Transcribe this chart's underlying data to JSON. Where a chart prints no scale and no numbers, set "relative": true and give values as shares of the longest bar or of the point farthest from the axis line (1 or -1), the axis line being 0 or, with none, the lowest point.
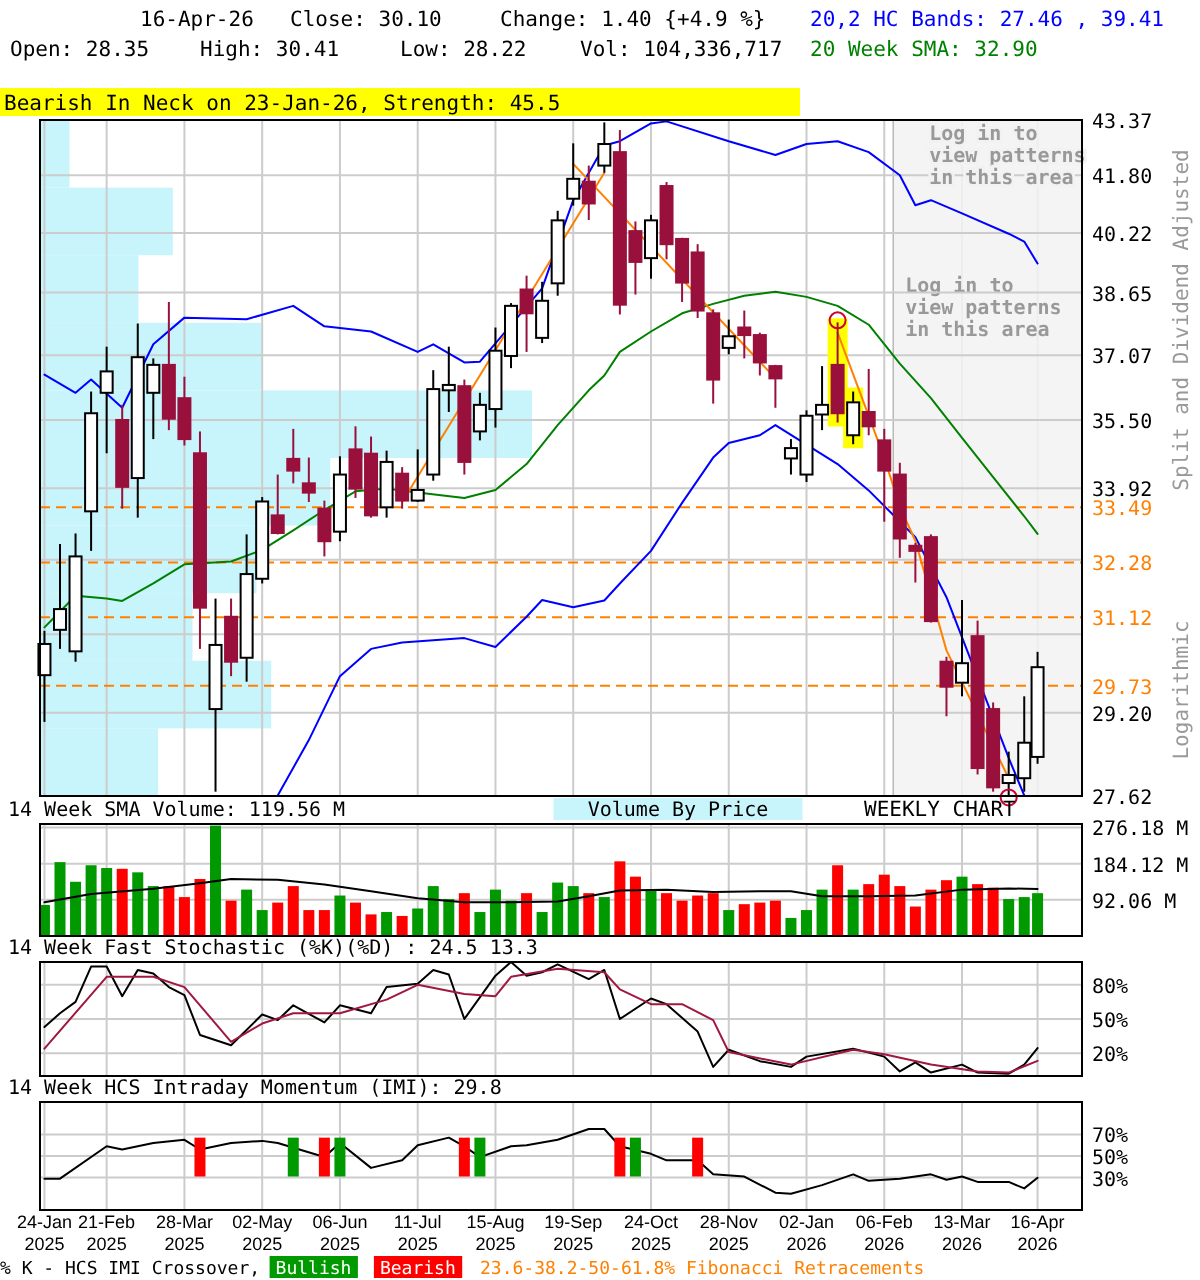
{
  "chart_data": [
    {
      "type": "candlestick",
      "title": "Bearish In Neck on 23-Jan-26, Strength: 45.5",
      "ylabel": "Split and Dividend Adjusted",
      "colors": [
        "#ffffff",
        "#ffffff",
        "#ffffff",
        "#ffffff",
        "#ffffff",
        "#99103c",
        "#ffffff",
        "#ffffff",
        "#99103c",
        "#99103c",
        "#99103c",
        "#ffffff",
        "#99103c",
        "#ffffff",
        "#ffffff",
        "#99103c",
        "#99103c",
        "#99103c",
        "#99103c",
        "#ffffff",
        "#99103c",
        "#99103c",
        "#ffffff",
        "#99103c",
        "#ffffff",
        "#ffffff",
        "#ffffff",
        "#99103c",
        "#ffffff",
        "#ffffff",
        "#ffffff",
        "#99103c",
        "#ffffff",
        "#ffffff",
        "#ffffff",
        "#99103c",
        "#ffffff",
        "#99103c",
        "#99103c",
        "#ffffff",
        "#99103c",
        "#99103c",
        "#99103c",
        "#99103c",
        "#ffffff",
        "#99103c",
        "#99103c",
        "#99103c",
        "#ffffff",
        "#ffffff",
        "#ffffff",
        "#99103c",
        "#ffffff",
        "#99103c",
        "#99103c",
        "#99103c",
        "#99103c",
        "#99103c",
        "#99103c",
        "#ffffff",
        "#99103c",
        "#99103c",
        "#ffffff",
        "#ffffff",
        "#ffffff"
      ],
      "annotations": [
        "16-Apr-26",
        "Close: 30.10",
        "Change: 1.40 {+4.9 %}",
        "Open: 28.35",
        "High: 30.41",
        "Low: 28.22",
        "Vol: 104,336,717",
        "20,2 HC Bands: 27.46 , 39.41",
        "20 Week SMA: 32.90",
        "Logarithmic",
        "Log in to view patterns in this area"
      ],
      "x": [
        "2025-01-24",
        "2025-01-31",
        "2025-02-07",
        "2025-02-14",
        "2025-02-21",
        "2025-02-28",
        "2025-03-07",
        "2025-03-14",
        "2025-03-21",
        "2025-03-28",
        "2025-04-04",
        "2025-04-11",
        "2025-04-18",
        "2025-04-25",
        "2025-05-02",
        "2025-05-09",
        "2025-05-16",
        "2025-05-23",
        "2025-05-30",
        "2025-06-06",
        "2025-06-13",
        "2025-06-20",
        "2025-06-27",
        "2025-07-04",
        "2025-07-11",
        "2025-07-18",
        "2025-07-25",
        "2025-08-01",
        "2025-08-08",
        "2025-08-15",
        "2025-08-22",
        "2025-08-29",
        "2025-09-05",
        "2025-09-12",
        "2025-09-19",
        "2025-09-26",
        "2025-10-03",
        "2025-10-10",
        "2025-10-17",
        "2025-10-24",
        "2025-10-31",
        "2025-11-07",
        "2025-11-14",
        "2025-11-21",
        "2025-11-28",
        "2025-12-05",
        "2025-12-12",
        "2025-12-19",
        "2025-12-26",
        "2026-01-02",
        "2026-01-09",
        "2026-01-16",
        "2026-01-23",
        "2026-01-30",
        "2026-02-06",
        "2026-02-13",
        "2026-02-20",
        "2026-02-27",
        "2026-03-06",
        "2026-03-13",
        "2026-03-20",
        "2026-03-27",
        "2026-04-03",
        "2026-04-10",
        "2026-04-16"
      ],
      "ohlc": [
        [
          29.94,
          30.84,
          29.02,
          30.57
        ],
        [
          30.86,
          32.68,
          30.47,
          31.29
        ],
        [
          30.42,
          32.91,
          30.21,
          32.41
        ],
        [
          33.4,
          36.18,
          32.53,
          35.66
        ],
        [
          36.15,
          37.28,
          34.72,
          36.67
        ],
        [
          35.5,
          35.86,
          33.46,
          33.95
        ],
        [
          34.15,
          37.86,
          33.26,
          37.02
        ],
        [
          36.15,
          36.99,
          35.05,
          36.83
        ],
        [
          36.83,
          38.41,
          35.26,
          35.53
        ],
        [
          36.02,
          36.54,
          34.9,
          35.05
        ],
        [
          34.72,
          35.23,
          30.47,
          31.32
        ],
        [
          29.27,
          31.51,
          27.7,
          30.55
        ],
        [
          31.13,
          31.51,
          29.92,
          30.21
        ],
        [
          30.29,
          32.89,
          29.81,
          32.03
        ],
        [
          31.93,
          33.72,
          31.83,
          33.62
        ],
        [
          33.31,
          34.23,
          32.89,
          32.92
        ],
        [
          34.59,
          35.29,
          34.03,
          34.32
        ],
        [
          34.03,
          34.62,
          33.61,
          33.82
        ],
        [
          33.46,
          33.64,
          32.41,
          32.74
        ],
        [
          32.95,
          34.65,
          32.74,
          34.23
        ],
        [
          34.81,
          35.35,
          33.7,
          33.91
        ],
        [
          34.71,
          35.11,
          33.26,
          33.31
        ],
        [
          33.49,
          34.78,
          33.26,
          34.52
        ],
        [
          34.25,
          34.4,
          33.46,
          33.64
        ],
        [
          33.64,
          34.81,
          33.61,
          33.88
        ],
        [
          34.23,
          36.7,
          34.09,
          36.24
        ],
        [
          36.21,
          37.28,
          35.69,
          36.34
        ],
        [
          36.31,
          36.47,
          34.23,
          34.52
        ],
        [
          35.23,
          36.15,
          35.02,
          35.86
        ],
        [
          35.76,
          37.76,
          35.32,
          37.18
        ],
        [
          37.05,
          38.38,
          36.75,
          38.31
        ],
        [
          38.73,
          39.09,
          37.15,
          38.12
        ],
        [
          37.5,
          38.93,
          37.37,
          38.44
        ],
        [
          38.89,
          40.82,
          38.57,
          40.56
        ],
        [
          41.15,
          42.7,
          40.96,
          41.7
        ],
        [
          41.62,
          42.07,
          40.57,
          41.02
        ],
        [
          42.07,
          43.3,
          41.87,
          42.68
        ],
        [
          42.45,
          43.08,
          38.09,
          38.34
        ],
        [
          40.27,
          40.53,
          38.6,
          39.45
        ],
        [
          39.55,
          40.71,
          39.01,
          40.56
        ],
        [
          41.5,
          41.61,
          39.52,
          39.92
        ],
        [
          40.06,
          40.09,
          38.41,
          38.91
        ],
        [
          39.7,
          39.92,
          38.0,
          38.19
        ],
        [
          38.12,
          38.22,
          35.89,
          36.47
        ],
        [
          37.25,
          37.96,
          37.09,
          37.54
        ],
        [
          37.76,
          38.19,
          36.99,
          37.57
        ],
        [
          37.57,
          37.63,
          36.57,
          36.89
        ],
        [
          36.8,
          36.83,
          35.79,
          36.5
        ],
        [
          34.6,
          35.05,
          34.23,
          34.84
        ],
        [
          34.23,
          35.73,
          34.06,
          35.6
        ],
        [
          35.63,
          36.8,
          35.26,
          35.86
        ],
        [
          36.83,
          37.89,
          35.44,
          35.66
        ],
        [
          35.14,
          36.18,
          34.93,
          35.92
        ],
        [
          35.69,
          36.73,
          35.14,
          35.35
        ],
        [
          35.02,
          35.29,
          33.17,
          34.32
        ],
        [
          34.23,
          34.5,
          32.38,
          32.8
        ],
        [
          32.64,
          32.7,
          31.85,
          32.53
        ],
        [
          32.83,
          32.89,
          31.01,
          31.04
        ],
        [
          30.21,
          30.31,
          29.13,
          29.71
        ],
        [
          29.79,
          31.48,
          29.52,
          30.18
        ],
        [
          30.73,
          31.05,
          28.02,
          28.14
        ],
        [
          29.27,
          29.4,
          27.7,
          27.78
        ],
        [
          27.86,
          28.45,
          27.63,
          28.01
        ],
        [
          27.95,
          29.52,
          27.7,
          28.62
        ],
        [
          28.35,
          30.41,
          28.22,
          30.1
        ]
      ],
      "series": [
        {
          "type": "line",
          "color": "#0000ff",
          "x": [
            "2025-01-24",
            "2025-02-07",
            "2025-02-14",
            "2025-02-28",
            "2025-03-14",
            "2025-03-28",
            "2025-04-25",
            "2025-05-16",
            "2025-05-30",
            "2025-06-20",
            "2025-07-11",
            "2025-07-18",
            "2025-08-01",
            "2025-08-08",
            "2025-09-05",
            "2025-09-19",
            "2025-10-03",
            "2025-10-10",
            "2025-10-24",
            "2025-10-31",
            "2025-11-28",
            "2025-12-19",
            "2026-01-02",
            "2026-01-16",
            "2026-01-30",
            "2026-02-13",
            "2026-02-20",
            "2026-02-27",
            "2026-03-13",
            "2026-04-03",
            "2026-04-10",
            "2026-04-16"
          ],
          "values": [
            36.59,
            36.15,
            36.47,
            35.79,
            37.34,
            38.01,
            37.97,
            38.31,
            37.79,
            37.66,
            37.15,
            37.34,
            36.89,
            36.91,
            38.76,
            41.11,
            42.64,
            42.76,
            43.27,
            43.33,
            42.76,
            42.37,
            42.68,
            42.76,
            42.45,
            41.8,
            40.97,
            41.11,
            40.75,
            40.2,
            39.99,
            39.41
          ]
        },
        {
          "type": "line",
          "color": "#0000ff",
          "x": [
            "2025-05-09",
            "2025-05-23",
            "2025-06-06",
            "2025-06-20",
            "2025-07-04",
            "2025-08-01",
            "2025-08-15",
            "2025-08-29",
            "2025-09-05",
            "2025-09-19",
            "2025-10-03",
            "2025-10-10",
            "2025-10-24",
            "2025-11-07",
            "2025-11-21",
            "2025-11-28",
            "2025-12-12",
            "2025-12-19",
            "2026-01-16",
            "2026-01-30",
            "2026-02-20",
            "2026-03-06",
            "2026-04-03",
            "2026-04-10"
          ],
          "values": [
            27.63,
            28.67,
            29.92,
            30.47,
            30.6,
            30.69,
            30.51,
            31.13,
            31.48,
            31.33,
            31.47,
            31.83,
            32.53,
            33.59,
            34.62,
            34.96,
            35.14,
            35.38,
            34.47,
            33.87,
            32.83,
            31.54,
            28.33,
            27.63
          ]
        },
        {
          "type": "line",
          "color": "#008000",
          "x": [
            "2025-01-24",
            "2025-02-07",
            "2025-02-21",
            "2025-02-28",
            "2025-03-14",
            "2025-03-28",
            "2025-04-18",
            "2025-05-02",
            "2025-05-16",
            "2025-05-30",
            "2025-06-13",
            "2025-06-27",
            "2025-07-11",
            "2025-08-01",
            "2025-08-15",
            "2025-08-29",
            "2025-09-12",
            "2025-09-26",
            "2025-10-03",
            "2025-10-10",
            "2025-10-24",
            "2025-11-07",
            "2025-11-21",
            "2025-12-05",
            "2025-12-19",
            "2026-01-02",
            "2026-01-16",
            "2026-01-30",
            "2026-02-13",
            "2026-02-27",
            "2026-03-13",
            "2026-03-27",
            "2026-04-10",
            "2026-04-16"
          ],
          "values": [
            30.91,
            31.57,
            31.51,
            31.46,
            31.83,
            32.24,
            32.3,
            32.55,
            32.98,
            33.43,
            33.85,
            33.91,
            33.82,
            33.7,
            33.88,
            34.47,
            35.38,
            36.21,
            36.57,
            37.15,
            37.66,
            38.12,
            38.36,
            38.57,
            38.67,
            38.54,
            38.31,
            37.83,
            36.86,
            36.02,
            35.08,
            34.17,
            33.29,
            32.9
          ]
        },
        {
          "type": "line",
          "color": "#ff8000",
          "x": [
            "2025-07-04",
            "2025-10-03"
          ],
          "values": [
            33.61,
            41.87
          ]
        },
        {
          "type": "line",
          "color": "#ff8000",
          "x": [
            "2025-09-19",
            "2025-12-19"
          ],
          "values": [
            42.12,
            36.5
          ]
        },
        {
          "type": "line",
          "color": "#ff8000",
          "x": [
            "2026-01-16",
            "2026-02-06",
            "2026-02-13",
            "2026-02-20",
            "2026-03-06",
            "2026-04-03"
          ],
          "values": [
            37.63,
            34.62,
            33.5,
            32.75,
            30.44,
            27.95
          ]
        }
      ],
      "xlim": [
        "2025-01-22",
        "2026-05-06"
      ],
      "xticks": [
        {
          "value": "2025-01-24",
          "label": null
        },
        {
          "value": "2025-02-21",
          "label": null
        },
        {
          "value": "2025-03-28",
          "label": null
        },
        {
          "value": "2025-05-02",
          "label": null
        },
        {
          "value": "2025-06-06",
          "label": null
        },
        {
          "value": "2025-07-11",
          "label": null
        },
        {
          "value": "2025-08-15",
          "label": null
        },
        {
          "value": "2025-09-19",
          "label": null
        },
        {
          "value": "2025-10-24",
          "label": null
        },
        {
          "value": "2025-11-28",
          "label": null
        },
        {
          "value": "2026-01-02",
          "label": null
        },
        {
          "value": "2026-02-06",
          "label": null
        },
        {
          "value": "2026-03-13",
          "label": null
        },
        {
          "value": "2026-04-16",
          "label": null
        }
      ],
      "ylim": [
        27.62,
        43.37
      ],
      "log": true,
      "yticks": [
        27.62,
        {
          "value": 29.2,
          "label": "29.20"
        },
        {
          "value": 30.77,
          "label": null
        },
        {
          "value": 32.34,
          "label": null
        },
        33.92,
        {
          "value": 35.5,
          "label": "35.50"
        },
        37.07,
        38.65,
        40.22,
        {
          "value": 41.8,
          "label": "41.80"
        },
        43.37
      ],
      "ref_lines": [
        {
          "axis": "y",
          "value": 33.49,
          "label": "33.49",
          "color": "#ff8000",
          "line_style": "dashed"
        },
        {
          "axis": "y",
          "value": 32.28,
          "label": "32.28",
          "color": "#ff8000",
          "line_style": "dashed"
        },
        {
          "axis": "y",
          "value": 31.12,
          "label": "31.12",
          "color": "#ff8000",
          "line_style": "dashed"
        },
        {
          "axis": "y",
          "value": 29.73,
          "label": "29.73",
          "color": "#ff8000",
          "line_style": "dashed"
        }
      ],
      "bands": [
        {
          "axis": "x",
          "from": "2026-02-10",
          "to": "2026-05-06",
          "label": "Log in to view patterns in this area",
          "color": "#f2f2f2"
        }
      ],
      "grid": true,
      "tick_labels": "y"
    },
    {
      "type": "bar",
      "orientation": "horizontal",
      "relative": true,
      "color": "#c8f4fb",
      "categories": [
        null,
        null,
        null,
        null,
        null,
        null,
        null,
        null,
        null,
        null
      ],
      "values": [
        0.06,
        0.27,
        0.2,
        0.45,
        1,
        0.59,
        0.44,
        0.31,
        0.47,
        0.24
      ]
    },
    {
      "type": "bar",
      "title": "14 Week SMA Volume: 119.56 M",
      "annotations": [
        "Volume By Price",
        "WEEKLY CHART"
      ],
      "x": [
        "2025-01-24",
        "2025-01-31",
        "2025-02-07",
        "2025-02-14",
        "2025-02-21",
        "2025-02-28",
        "2025-03-07",
        "2025-03-14",
        "2025-03-21",
        "2025-03-28",
        "2025-04-04",
        "2025-04-11",
        "2025-04-18",
        "2025-04-25",
        "2025-05-02",
        "2025-05-09",
        "2025-05-16",
        "2025-05-23",
        "2025-05-30",
        "2025-06-06",
        "2025-06-13",
        "2025-06-20",
        "2025-06-27",
        "2025-07-04",
        "2025-07-11",
        "2025-07-18",
        "2025-07-25",
        "2025-08-01",
        "2025-08-08",
        "2025-08-15",
        "2025-08-22",
        "2025-08-29",
        "2025-09-05",
        "2025-09-12",
        "2025-09-19",
        "2025-09-26",
        "2025-10-03",
        "2025-10-10",
        "2025-10-17",
        "2025-10-24",
        "2025-10-31",
        "2025-11-07",
        "2025-11-14",
        "2025-11-21",
        "2025-11-28",
        "2025-12-05",
        "2025-12-12",
        "2025-12-19",
        "2025-12-26",
        "2026-01-02",
        "2026-01-09",
        "2026-01-16",
        "2026-01-23",
        "2026-01-30",
        "2026-02-06",
        "2026-02-13",
        "2026-02-20",
        "2026-02-27",
        "2026-03-06",
        "2026-03-13",
        "2026-03-20",
        "2026-03-27",
        "2026-04-03",
        "2026-04-10",
        "2026-04-16"
      ],
      "series": [
        {
          "type": "bar",
          "values": [
            79,
            188,
            138,
            180,
            173,
            171,
            162,
            127,
            127,
            99,
            145,
            281,
            90,
            118,
            66,
            85,
            127,
            66,
            66,
            103,
            85,
            55,
            61,
            51,
            70,
            127,
            94,
            109,
            61,
            118,
            90,
            109,
            61,
            136,
            127,
            109,
            99,
            190,
            151,
            118,
            109,
            90,
            103,
            109,
            66,
            81,
            85,
            90,
            46,
            66,
            118,
            180,
            118,
            132,
            156,
            127,
            75,
            118,
            142,
            151,
            132,
            123,
            94,
            99,
            109
          ],
          "colors": [
            "#009900",
            "#009900",
            "#009900",
            "#009900",
            "#009900",
            "#ff0000",
            "#009900",
            "#009900",
            "#ff0000",
            "#ff0000",
            "#ff0000",
            "#009900",
            "#ff0000",
            "#009900",
            "#009900",
            "#ff0000",
            "#ff0000",
            "#ff0000",
            "#ff0000",
            "#009900",
            "#ff0000",
            "#ff0000",
            "#009900",
            "#ff0000",
            "#009900",
            "#009900",
            "#009900",
            "#ff0000",
            "#009900",
            "#009900",
            "#009900",
            "#ff0000",
            "#009900",
            "#009900",
            "#009900",
            "#ff0000",
            "#009900",
            "#ff0000",
            "#ff0000",
            "#009900",
            "#ff0000",
            "#ff0000",
            "#ff0000",
            "#ff0000",
            "#009900",
            "#ff0000",
            "#ff0000",
            "#ff0000",
            "#009900",
            "#009900",
            "#009900",
            "#ff0000",
            "#009900",
            "#ff0000",
            "#ff0000",
            "#ff0000",
            "#ff0000",
            "#ff0000",
            "#ff0000",
            "#009900",
            "#ff0000",
            "#ff0000",
            "#009900",
            "#009900",
            "#009900"
          ]
        },
        {
          "type": "line",
          "color": "#000000",
          "x": [
            "2025-01-24",
            "2025-02-14",
            "2025-03-14",
            "2025-04-04",
            "2025-04-18",
            "2025-05-09",
            "2025-05-30",
            "2025-06-20",
            "2025-07-11",
            "2025-08-01",
            "2025-08-22",
            "2025-09-12",
            "2025-09-26",
            "2025-10-10",
            "2025-10-31",
            "2025-11-21",
            "2025-12-12",
            "2025-12-26",
            "2026-01-09",
            "2026-01-30",
            "2026-02-20",
            "2026-03-13",
            "2026-04-03",
            "2026-04-16"
          ],
          "values": [
            86,
            107,
            120,
            134,
            145,
            143,
            131,
            114,
            96,
            86,
            86,
            88,
            101,
            116,
            118,
            112,
            114,
            114,
            101,
            101,
            103,
            118,
            121,
            119.56
          ]
        }
      ],
      "xlim": [
        "2025-01-22",
        "2026-05-06"
      ],
      "xticks": [
        {
          "value": "2025-01-24",
          "label": null
        },
        {
          "value": "2025-02-21",
          "label": null
        },
        {
          "value": "2025-03-28",
          "label": null
        },
        {
          "value": "2025-05-02",
          "label": null
        },
        {
          "value": "2025-06-06",
          "label": null
        },
        {
          "value": "2025-07-11",
          "label": null
        },
        {
          "value": "2025-08-15",
          "label": null
        },
        {
          "value": "2025-09-19",
          "label": null
        },
        {
          "value": "2025-10-24",
          "label": null
        },
        {
          "value": "2025-11-28",
          "label": null
        },
        {
          "value": "2026-01-02",
          "label": null
        },
        {
          "value": "2026-02-06",
          "label": null
        },
        {
          "value": "2026-03-13",
          "label": null
        },
        {
          "value": "2026-04-16",
          "label": null
        }
      ],
      "ylim": [
        0,
        285
      ],
      "yticks": [
        {
          "value": 92.06,
          "label": "92.06 M"
        },
        {
          "value": 184.12,
          "label": "184.12 M"
        },
        {
          "value": 276.18,
          "label": "276.18 M"
        }
      ],
      "grid": true,
      "tick_labels": "y"
    },
    {
      "type": "line",
      "title": "14 Week Fast Stochastic (%K)(%D) : 24.5 13.3",
      "series": [
        {
          "color": "#000000",
          "x": [
            "2025-01-24",
            "2025-01-31",
            "2025-02-07",
            "2025-02-14",
            "2025-02-21",
            "2025-02-28",
            "2025-03-07",
            "2025-03-14",
            "2025-03-21",
            "2025-03-28",
            "2025-04-04",
            "2025-04-18",
            "2025-05-02",
            "2025-05-09",
            "2025-05-16",
            "2025-05-30",
            "2025-06-06",
            "2025-06-20",
            "2025-06-27",
            "2025-07-11",
            "2025-07-18",
            "2025-07-25",
            "2025-08-01",
            "2025-08-15",
            "2025-08-22",
            "2025-08-29",
            "2025-09-05",
            "2025-09-12",
            "2025-09-26",
            "2025-10-03",
            "2025-10-10",
            "2025-10-24",
            "2025-10-31",
            "2025-11-14",
            "2025-11-21",
            "2025-11-28",
            "2025-12-12",
            "2025-12-26",
            "2026-01-02",
            "2026-01-23",
            "2026-02-06",
            "2026-02-13",
            "2026-02-20",
            "2026-02-27",
            "2026-03-13",
            "2026-03-20",
            "2026-04-03",
            "2026-04-10",
            "2026-04-16"
          ],
          "values": [
            43,
            55,
            65,
            96,
            96,
            70,
            93,
            90,
            78,
            71,
            36,
            27,
            54,
            49,
            62,
            47,
            62,
            55,
            78,
            81,
            93,
            89,
            50,
            88,
            100,
            88,
            91,
            98,
            85,
            93,
            50,
            68,
            63,
            39,
            8,
            23,
            13,
            8,
            17,
            24,
            17,
            4,
            12,
            3,
            10,
            3,
            2,
            10,
            24.5
          ]
        },
        {
          "color": "#a01840",
          "x": [
            "2025-01-24",
            "2025-02-21",
            "2025-03-14",
            "2025-03-28",
            "2025-04-18",
            "2025-05-02",
            "2025-05-16",
            "2025-06-06",
            "2025-06-27",
            "2025-07-11",
            "2025-08-01",
            "2025-08-15",
            "2025-08-22",
            "2025-09-12",
            "2025-10-03",
            "2025-10-10",
            "2025-10-24",
            "2025-11-07",
            "2025-11-21",
            "2025-11-28",
            "2025-12-26",
            "2026-01-23",
            "2026-02-06",
            "2026-02-27",
            "2026-03-20",
            "2026-04-03",
            "2026-04-16"
          ],
          "values": [
            24,
            87,
            87,
            78,
            30,
            46,
            55,
            55,
            67,
            80,
            72,
            70,
            87,
            94,
            91,
            76,
            63,
            63,
            49,
            21,
            10,
            23,
            19,
            10,
            4,
            3,
            13.3
          ]
        }
      ],
      "xlim": [
        "2025-01-22",
        "2026-05-06"
      ],
      "xticks": [
        {
          "value": "2025-01-24",
          "label": null
        },
        {
          "value": "2025-02-21",
          "label": null
        },
        {
          "value": "2025-03-28",
          "label": null
        },
        {
          "value": "2025-05-02",
          "label": null
        },
        {
          "value": "2025-06-06",
          "label": null
        },
        {
          "value": "2025-07-11",
          "label": null
        },
        {
          "value": "2025-08-15",
          "label": null
        },
        {
          "value": "2025-09-19",
          "label": null
        },
        {
          "value": "2025-10-24",
          "label": null
        },
        {
          "value": "2025-11-28",
          "label": null
        },
        {
          "value": "2026-01-02",
          "label": null
        },
        {
          "value": "2026-02-06",
          "label": null
        },
        {
          "value": "2026-03-13",
          "label": null
        },
        {
          "value": "2026-04-16",
          "label": null
        }
      ],
      "ylim": [
        0,
        100
      ],
      "yticks": [
        {
          "value": 20,
          "label": "20%"
        },
        {
          "value": 50,
          "label": "50%"
        },
        {
          "value": 80,
          "label": "80%"
        }
      ],
      "grid": true,
      "tick_labels": "y"
    },
    {
      "type": "line",
      "title": "14 Week HCS Intraday Momentum (IMI): 29.8",
      "legend": "bottom",
      "legend_title": "% K - HCS IMI Crossover,",
      "annotations": [
        "23.6-38.2-50-61.8% Fibonacci Retracements"
      ],
      "series": [
        {
          "color": "#000000",
          "x": [
            "2025-01-24",
            "2025-01-31",
            "2025-02-21",
            "2025-02-28",
            "2025-03-14",
            "2025-03-28",
            "2025-04-04",
            "2025-04-18",
            "2025-05-02",
            "2025-05-09",
            "2025-05-30",
            "2025-06-06",
            "2025-06-20",
            "2025-07-04",
            "2025-07-11",
            "2025-07-25",
            "2025-08-01",
            "2025-08-08",
            "2025-08-22",
            "2025-08-29",
            "2025-09-12",
            "2025-09-26",
            "2025-10-03",
            "2025-10-10",
            "2025-10-24",
            "2025-10-31",
            "2025-11-14",
            "2025-11-21",
            "2025-12-05",
            "2025-12-19",
            "2025-12-26",
            "2026-01-09",
            "2026-01-23",
            "2026-01-30",
            "2026-02-13",
            "2026-02-27",
            "2026-03-06",
            "2026-03-13",
            "2026-03-20",
            "2026-04-03",
            "2026-04-10",
            "2026-04-16"
          ],
          "values": [
            29,
            29,
            59,
            56,
            62,
            65,
            56,
            62,
            64,
            62,
            49,
            62,
            39,
            46,
            60,
            67,
            59,
            49,
            59,
            60,
            65,
            75,
            75,
            59,
            52,
            46,
            46,
            33,
            31,
            16,
            15,
            23,
            33,
            27,
            29,
            33,
            28,
            31,
            26,
            26,
            20,
            29.8
          ]
        },
        {
          "type": "bar",
          "name": "Bullish",
          "color": "#009900",
          "x": [
            "2025-05-16",
            "2025-06-06",
            "2025-08-08",
            "2025-10-17"
          ],
          "values": [
            36,
            36,
            36,
            36
          ],
          "base": [
            31,
            31,
            31,
            31
          ]
        },
        {
          "type": "bar",
          "name": "Bearish",
          "color": "#ff0000",
          "x": [
            "2025-04-04",
            "2025-05-30",
            "2025-08-01",
            "2025-10-10",
            "2025-11-14"
          ],
          "values": [
            36,
            36,
            36,
            36,
            36
          ],
          "base": [
            31,
            31,
            31,
            31,
            31
          ]
        }
      ],
      "xlim": [
        "2025-01-22",
        "2026-05-06"
      ],
      "xticks": [
        {
          "value": "2025-01-24",
          "label": "24-Jan\n2025"
        },
        {
          "value": "2025-02-21",
          "label": "21-Feb\n2025"
        },
        {
          "value": "2025-03-28",
          "label": "28-Mar\n2025"
        },
        {
          "value": "2025-05-02",
          "label": "02-May\n2025"
        },
        {
          "value": "2025-06-06",
          "label": "06-Jun\n2025"
        },
        {
          "value": "2025-07-11",
          "label": "11-Jul\n2025"
        },
        {
          "value": "2025-08-15",
          "label": "15-Aug\n2025"
        },
        {
          "value": "2025-09-19",
          "label": "19-Sep\n2025"
        },
        {
          "value": "2025-10-24",
          "label": "24-Oct\n2025"
        },
        {
          "value": "2025-11-28",
          "label": "28-Nov\n2025"
        },
        {
          "value": "2026-01-02",
          "label": "02-Jan\n2026"
        },
        {
          "value": "2026-02-06",
          "label": "06-Feb\n2026"
        },
        {
          "value": "2026-03-13",
          "label": "13-Mar\n2026"
        },
        {
          "value": "2026-04-16",
          "label": "16-Apr\n2026"
        }
      ],
      "ylim": [
        0,
        100
      ],
      "yticks": [
        {
          "value": 30,
          "label": "30%"
        },
        {
          "value": 50,
          "label": "50%"
        },
        {
          "value": 70,
          "label": "70%"
        }
      ],
      "grid": true
    }
  ]
}
